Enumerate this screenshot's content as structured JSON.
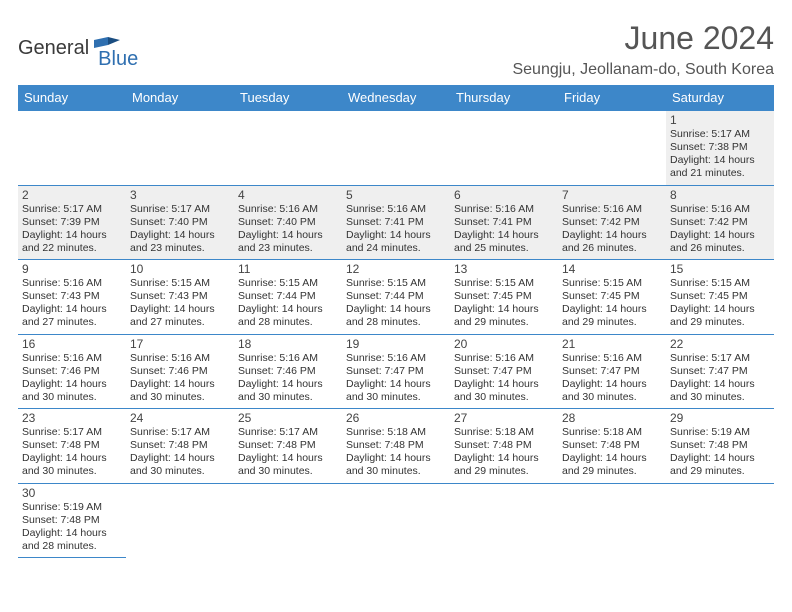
{
  "brand": {
    "part1": "General",
    "part2": "Blue"
  },
  "title": "June 2024",
  "location": "Seungju, Jeollanam-do, South Korea",
  "header_bg": "#3d87c9",
  "border_color": "#3d87c9",
  "shaded_bg": "#efefef",
  "weekdays": [
    "Sunday",
    "Monday",
    "Tuesday",
    "Wednesday",
    "Thursday",
    "Friday",
    "Saturday"
  ],
  "weeks": [
    [
      null,
      null,
      null,
      null,
      null,
      null,
      {
        "n": "1",
        "shaded": true,
        "sr": "Sunrise: 5:17 AM",
        "ss": "Sunset: 7:38 PM",
        "d1": "Daylight: 14 hours",
        "d2": "and 21 minutes."
      }
    ],
    [
      {
        "n": "2",
        "shaded": true,
        "sr": "Sunrise: 5:17 AM",
        "ss": "Sunset: 7:39 PM",
        "d1": "Daylight: 14 hours",
        "d2": "and 22 minutes."
      },
      {
        "n": "3",
        "shaded": true,
        "sr": "Sunrise: 5:17 AM",
        "ss": "Sunset: 7:40 PM",
        "d1": "Daylight: 14 hours",
        "d2": "and 23 minutes."
      },
      {
        "n": "4",
        "shaded": true,
        "sr": "Sunrise: 5:16 AM",
        "ss": "Sunset: 7:40 PM",
        "d1": "Daylight: 14 hours",
        "d2": "and 23 minutes."
      },
      {
        "n": "5",
        "shaded": true,
        "sr": "Sunrise: 5:16 AM",
        "ss": "Sunset: 7:41 PM",
        "d1": "Daylight: 14 hours",
        "d2": "and 24 minutes."
      },
      {
        "n": "6",
        "shaded": true,
        "sr": "Sunrise: 5:16 AM",
        "ss": "Sunset: 7:41 PM",
        "d1": "Daylight: 14 hours",
        "d2": "and 25 minutes."
      },
      {
        "n": "7",
        "shaded": true,
        "sr": "Sunrise: 5:16 AM",
        "ss": "Sunset: 7:42 PM",
        "d1": "Daylight: 14 hours",
        "d2": "and 26 minutes."
      },
      {
        "n": "8",
        "shaded": true,
        "sr": "Sunrise: 5:16 AM",
        "ss": "Sunset: 7:42 PM",
        "d1": "Daylight: 14 hours",
        "d2": "and 26 minutes."
      }
    ],
    [
      {
        "n": "9",
        "shaded": false,
        "sr": "Sunrise: 5:16 AM",
        "ss": "Sunset: 7:43 PM",
        "d1": "Daylight: 14 hours",
        "d2": "and 27 minutes."
      },
      {
        "n": "10",
        "shaded": false,
        "sr": "Sunrise: 5:15 AM",
        "ss": "Sunset: 7:43 PM",
        "d1": "Daylight: 14 hours",
        "d2": "and 27 minutes."
      },
      {
        "n": "11",
        "shaded": false,
        "sr": "Sunrise: 5:15 AM",
        "ss": "Sunset: 7:44 PM",
        "d1": "Daylight: 14 hours",
        "d2": "and 28 minutes."
      },
      {
        "n": "12",
        "shaded": false,
        "sr": "Sunrise: 5:15 AM",
        "ss": "Sunset: 7:44 PM",
        "d1": "Daylight: 14 hours",
        "d2": "and 28 minutes."
      },
      {
        "n": "13",
        "shaded": false,
        "sr": "Sunrise: 5:15 AM",
        "ss": "Sunset: 7:45 PM",
        "d1": "Daylight: 14 hours",
        "d2": "and 29 minutes."
      },
      {
        "n": "14",
        "shaded": false,
        "sr": "Sunrise: 5:15 AM",
        "ss": "Sunset: 7:45 PM",
        "d1": "Daylight: 14 hours",
        "d2": "and 29 minutes."
      },
      {
        "n": "15",
        "shaded": false,
        "sr": "Sunrise: 5:15 AM",
        "ss": "Sunset: 7:45 PM",
        "d1": "Daylight: 14 hours",
        "d2": "and 29 minutes."
      }
    ],
    [
      {
        "n": "16",
        "shaded": false,
        "sr": "Sunrise: 5:16 AM",
        "ss": "Sunset: 7:46 PM",
        "d1": "Daylight: 14 hours",
        "d2": "and 30 minutes."
      },
      {
        "n": "17",
        "shaded": false,
        "sr": "Sunrise: 5:16 AM",
        "ss": "Sunset: 7:46 PM",
        "d1": "Daylight: 14 hours",
        "d2": "and 30 minutes."
      },
      {
        "n": "18",
        "shaded": false,
        "sr": "Sunrise: 5:16 AM",
        "ss": "Sunset: 7:46 PM",
        "d1": "Daylight: 14 hours",
        "d2": "and 30 minutes."
      },
      {
        "n": "19",
        "shaded": false,
        "sr": "Sunrise: 5:16 AM",
        "ss": "Sunset: 7:47 PM",
        "d1": "Daylight: 14 hours",
        "d2": "and 30 minutes."
      },
      {
        "n": "20",
        "shaded": false,
        "sr": "Sunrise: 5:16 AM",
        "ss": "Sunset: 7:47 PM",
        "d1": "Daylight: 14 hours",
        "d2": "and 30 minutes."
      },
      {
        "n": "21",
        "shaded": false,
        "sr": "Sunrise: 5:16 AM",
        "ss": "Sunset: 7:47 PM",
        "d1": "Daylight: 14 hours",
        "d2": "and 30 minutes."
      },
      {
        "n": "22",
        "shaded": false,
        "sr": "Sunrise: 5:17 AM",
        "ss": "Sunset: 7:47 PM",
        "d1": "Daylight: 14 hours",
        "d2": "and 30 minutes."
      }
    ],
    [
      {
        "n": "23",
        "shaded": false,
        "sr": "Sunrise: 5:17 AM",
        "ss": "Sunset: 7:48 PM",
        "d1": "Daylight: 14 hours",
        "d2": "and 30 minutes."
      },
      {
        "n": "24",
        "shaded": false,
        "sr": "Sunrise: 5:17 AM",
        "ss": "Sunset: 7:48 PM",
        "d1": "Daylight: 14 hours",
        "d2": "and 30 minutes."
      },
      {
        "n": "25",
        "shaded": false,
        "sr": "Sunrise: 5:17 AM",
        "ss": "Sunset: 7:48 PM",
        "d1": "Daylight: 14 hours",
        "d2": "and 30 minutes."
      },
      {
        "n": "26",
        "shaded": false,
        "sr": "Sunrise: 5:18 AM",
        "ss": "Sunset: 7:48 PM",
        "d1": "Daylight: 14 hours",
        "d2": "and 30 minutes."
      },
      {
        "n": "27",
        "shaded": false,
        "sr": "Sunrise: 5:18 AM",
        "ss": "Sunset: 7:48 PM",
        "d1": "Daylight: 14 hours",
        "d2": "and 29 minutes."
      },
      {
        "n": "28",
        "shaded": false,
        "sr": "Sunrise: 5:18 AM",
        "ss": "Sunset: 7:48 PM",
        "d1": "Daylight: 14 hours",
        "d2": "and 29 minutes."
      },
      {
        "n": "29",
        "shaded": false,
        "sr": "Sunrise: 5:19 AM",
        "ss": "Sunset: 7:48 PM",
        "d1": "Daylight: 14 hours",
        "d2": "and 29 minutes."
      }
    ],
    [
      {
        "n": "30",
        "shaded": false,
        "sr": "Sunrise: 5:19 AM",
        "ss": "Sunset: 7:48 PM",
        "d1": "Daylight: 14 hours",
        "d2": "and 28 minutes."
      },
      null,
      null,
      null,
      null,
      null,
      null
    ]
  ]
}
